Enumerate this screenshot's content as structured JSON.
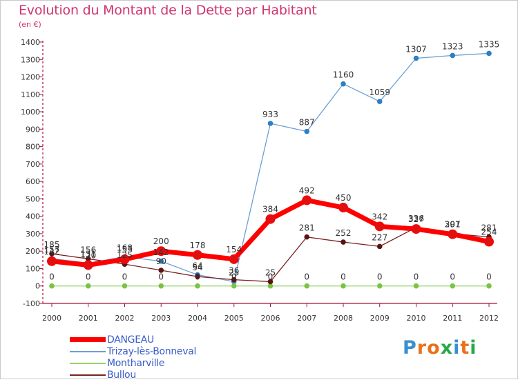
{
  "title": "Evolution du Montant de la Dette par Habitant",
  "unit": "(en €)",
  "logo": {
    "text": "Proxiti",
    "colors": [
      "#3a8fd0",
      "#e8721c",
      "#e8721c",
      "#2aa84a",
      "#3a8fd0",
      "#e8721c",
      "#2aa84a"
    ]
  },
  "chart_data": {
    "type": "line",
    "title": "Evolution du Montant de la Dette par Habitant",
    "ylabel": "(en €)",
    "xlabel": "",
    "categories": [
      "2000",
      "2001",
      "2002",
      "2003",
      "2004",
      "2005",
      "2006",
      "2007",
      "2008",
      "2009",
      "2010",
      "2011",
      "2012"
    ],
    "ylim": [
      -100,
      1400
    ],
    "yticks": [
      -100,
      0,
      100,
      200,
      300,
      400,
      500,
      600,
      700,
      800,
      900,
      1000,
      1100,
      1200,
      1300,
      1400
    ],
    "grid": false,
    "legend": "bottom-left",
    "series": [
      {
        "name": "DANGEAU",
        "color": "#ff0000",
        "marker": "#e01010",
        "values": [
          142,
          120,
          153,
          200,
          178,
          154,
          384,
          492,
          450,
          342,
          327,
          297,
          254
        ]
      },
      {
        "name": "Trizay-lès-Bonneval",
        "color": "#6a9fd4",
        "marker": "#2f7fc4",
        "values": [
          157,
          131,
          168,
          142,
          64,
          25,
          933,
          887,
          1160,
          1059,
          1307,
          1323,
          1335
        ]
      },
      {
        "name": "Montharville",
        "color": "#99d26b",
        "marker": "#7cc244",
        "values": [
          0,
          0,
          0,
          0,
          0,
          0,
          0,
          0,
          0,
          0,
          0,
          0,
          0
        ]
      },
      {
        "name": "Bullou",
        "color": "#7a2020",
        "marker": "#5a1414",
        "values": [
          185,
          156,
          125,
          90,
          54,
          36,
          25,
          281,
          252,
          227,
          336,
          301,
          281
        ]
      }
    ]
  }
}
